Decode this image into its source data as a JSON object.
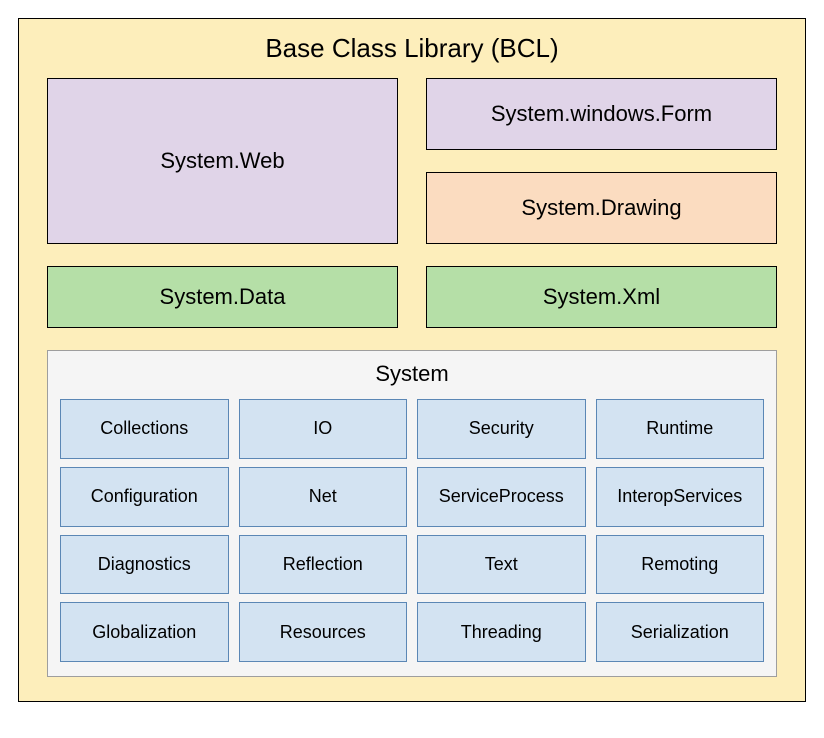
{
  "title": "Base Class Library (BCL)",
  "colors": {
    "outer_bg": "#fdeebb",
    "lavender": "#e0d4e8",
    "peach": "#fbdcc0",
    "green": "#b5dfa7",
    "blue_cell": "#d3e3f2",
    "panel_bg": "#f5f5f5",
    "panel_border": "#9e9e9e",
    "cell_border": "#5b87b5",
    "box_border": "#000000"
  },
  "top": {
    "left": {
      "label": "System.Web"
    },
    "right_top": {
      "label": "System.windows.Form"
    },
    "right_bottom": {
      "label": "System.Drawing"
    }
  },
  "mid": {
    "left": {
      "label": "System.Data"
    },
    "right": {
      "label": "System.Xml"
    }
  },
  "system": {
    "title": "System",
    "cells": [
      "Collections",
      "IO",
      "Security",
      "Runtime",
      "Configuration",
      "Net",
      "ServiceProcess",
      "InteropServices",
      "Diagnostics",
      "Reflection",
      "Text",
      "Remoting",
      "Globalization",
      "Resources",
      "Threading",
      "Serialization"
    ]
  },
  "typography": {
    "title_fontsize": 26,
    "box_fontsize": 22,
    "cell_fontsize": 18
  }
}
